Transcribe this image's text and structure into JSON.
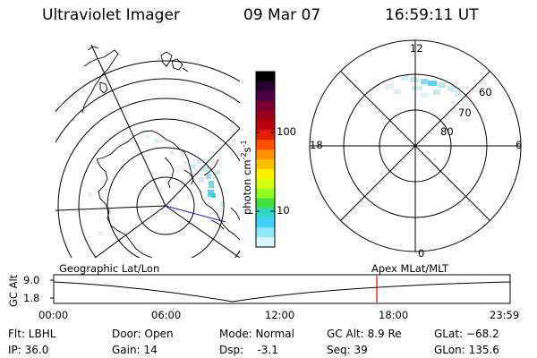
{
  "header": {
    "instrument": "Ultraviolet Imager",
    "date": "09 Mar 07",
    "time": "16:59:11 UT"
  },
  "colorbar": {
    "label": "photon cm",
    "exp1": "-2",
    "mid": "s",
    "exp2": "-1",
    "ticks": [
      "100",
      "10"
    ],
    "colors": [
      "#000000",
      "#2a0030",
      "#4b0048",
      "#7a0030",
      "#9a0018",
      "#c00010",
      "#e02008",
      "#ff5000",
      "#ff9000",
      "#ffc000",
      "#fff000",
      "#d8ff10",
      "#90ff20",
      "#40e040",
      "#30d8c0",
      "#40d0ff",
      "#90e8ff",
      "#d8f4ff"
    ]
  },
  "polar_plot": {
    "labels": [
      "12",
      "18",
      "6",
      "0",
      "60",
      "70",
      "80"
    ]
  },
  "timeline": {
    "left_label": "Geographic Lat/Lon",
    "right_label": "Apex MLat/MLT",
    "axis_title": "GC Alt",
    "y_ticks": [
      "9.0",
      "1.8"
    ],
    "x_ticks": [
      "00:00",
      "06:00",
      "12:00",
      "18:00",
      "23:59"
    ],
    "current_time_fraction": 0.7078
  },
  "info": {
    "filter": "Flt: LBHL",
    "ip": "IP: 36.0",
    "door": "Door: Open",
    "gain": "Gain: 14",
    "mode": "Mode: Normal",
    "dsp": "Dsp:    -3.1",
    "gcalt": "GC Alt: 8.9 Re",
    "seq": "Seq: 39",
    "glat": "GLat: −68.2",
    "glon": "GLon: 135.6"
  }
}
